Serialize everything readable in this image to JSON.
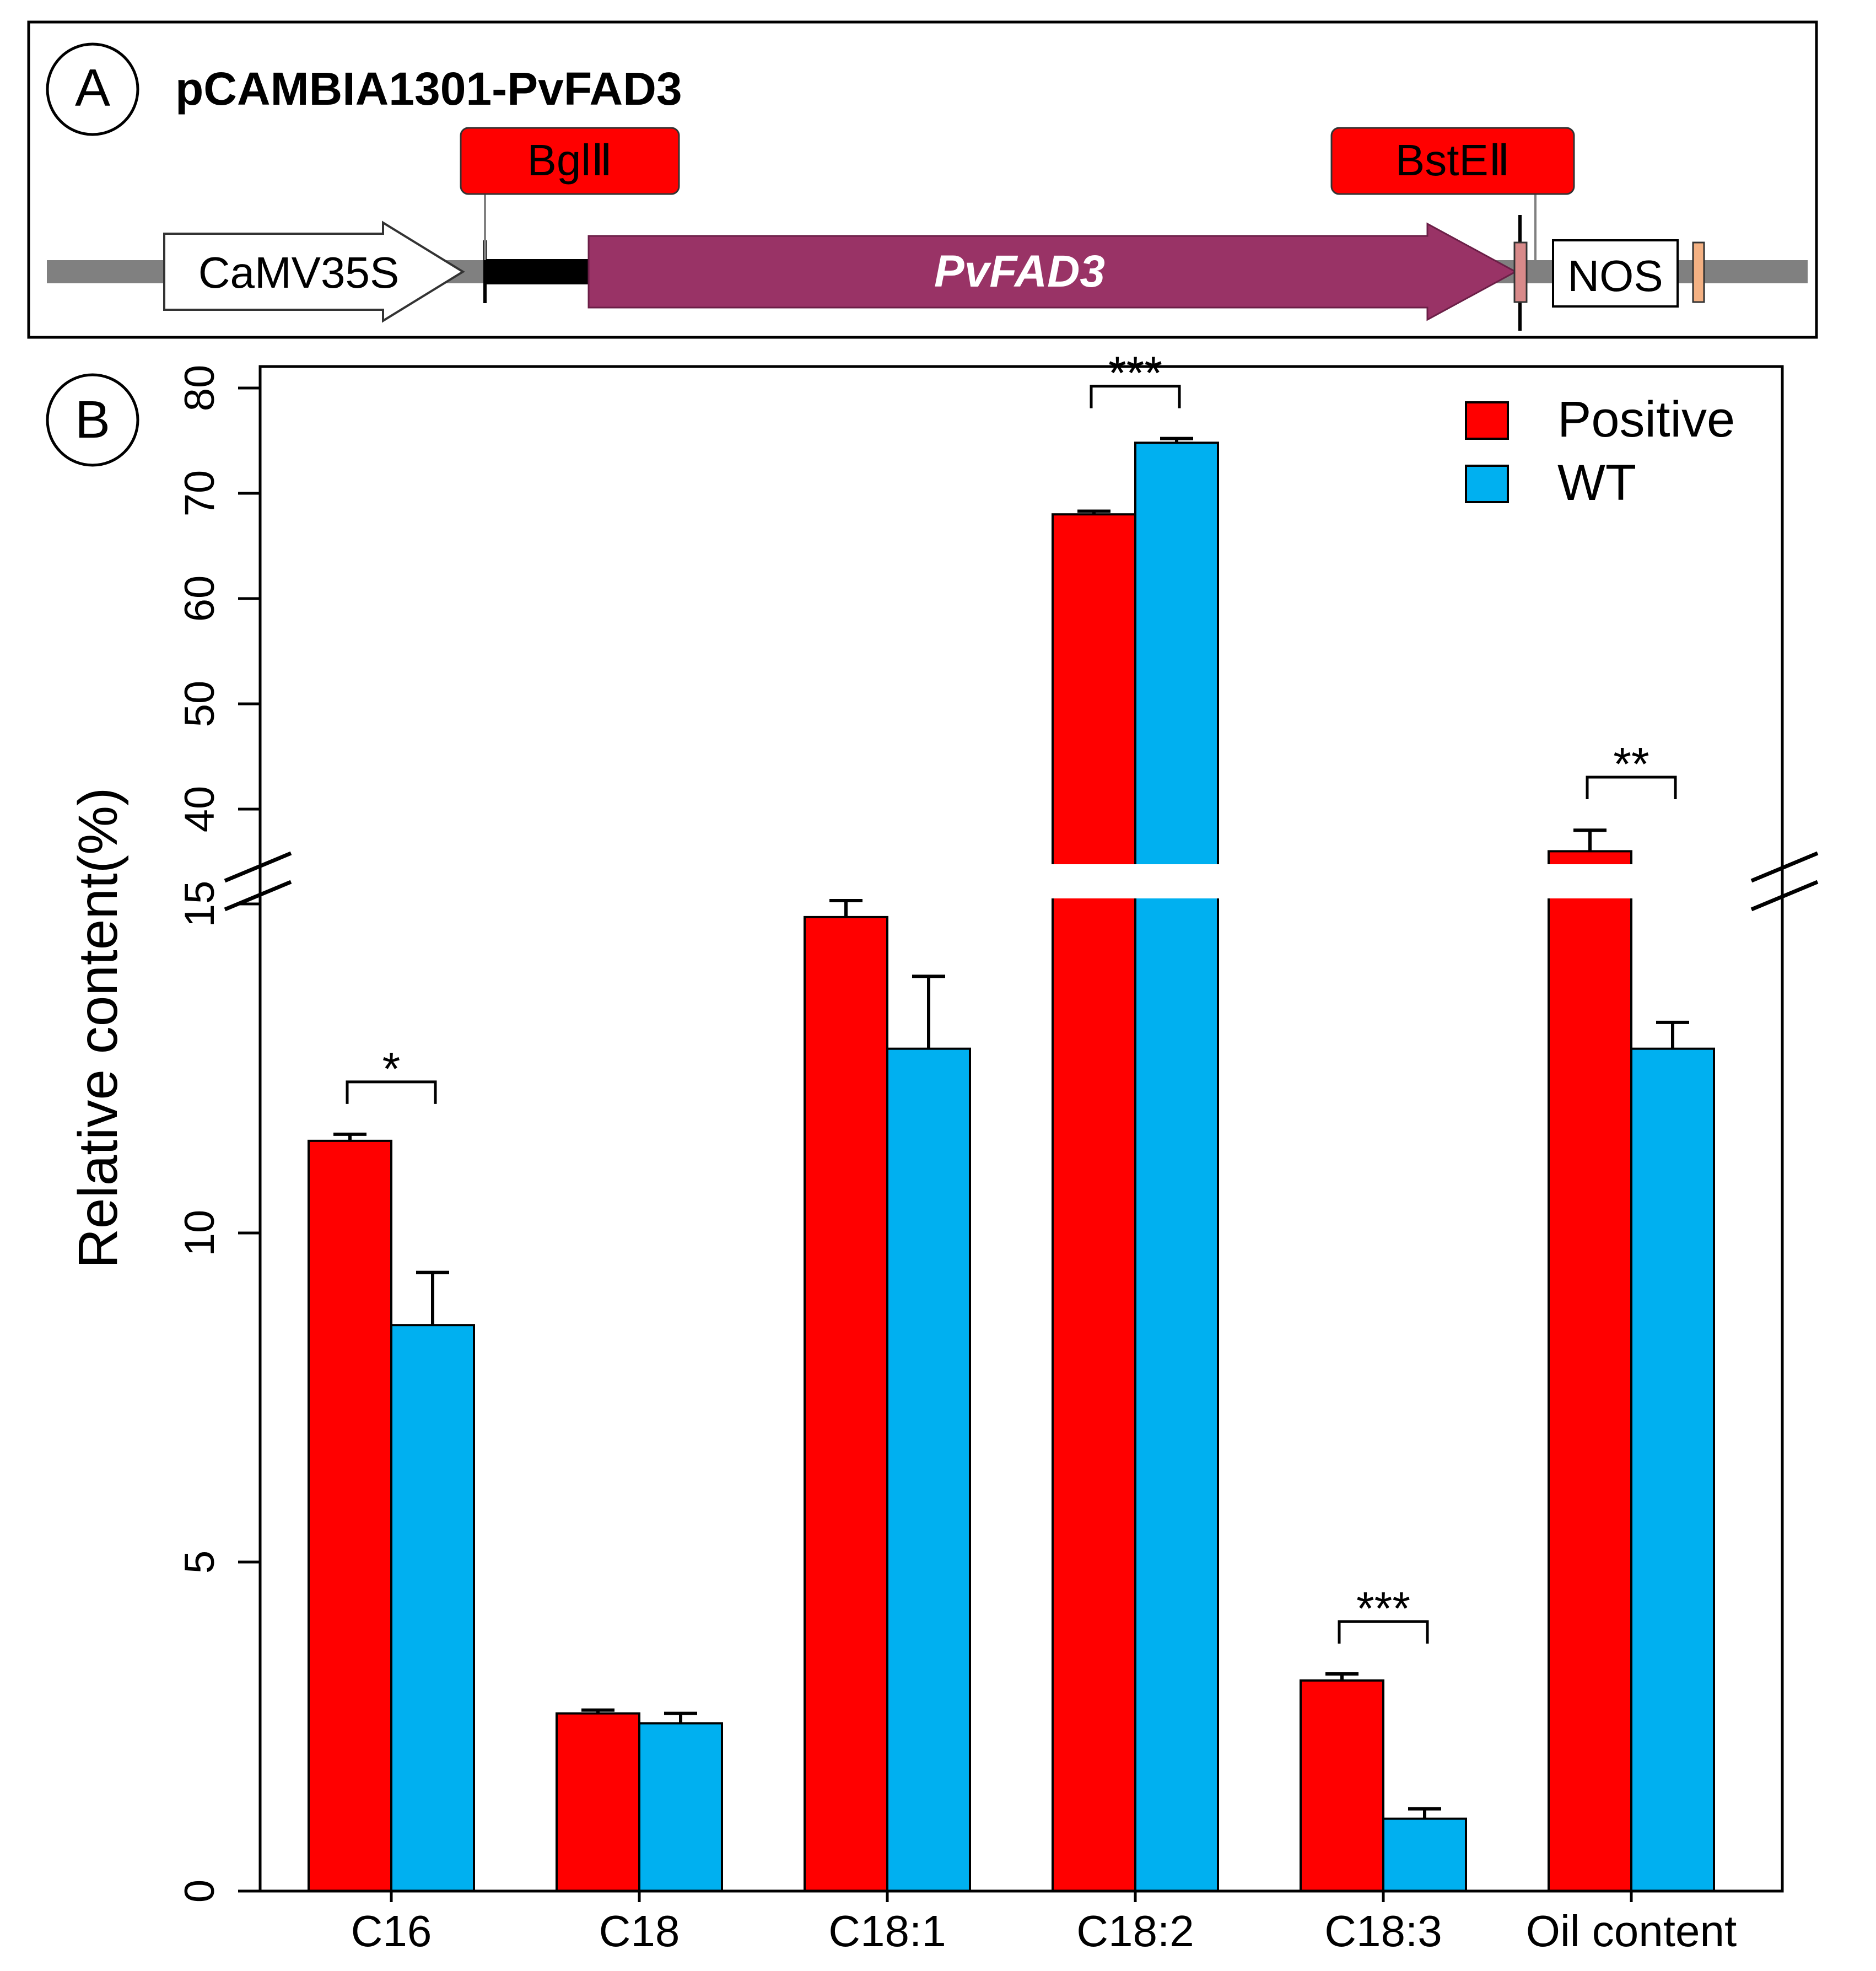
{
  "panel_a": {
    "label": "A",
    "title": "pCAMBIA1301-PvFAD3",
    "site_left": "BglⅡ",
    "site_right": "BstEⅡ",
    "promoter": "CaMV35S",
    "gene": "PvFAD3",
    "terminator": "NOS",
    "colors": {
      "backbone": "#808080",
      "site_box": "#ff0000",
      "gene_arrow": "#993366",
      "box_left": "#d88a8a",
      "box_right": "#f4b183"
    }
  },
  "panel_b": {
    "label": "B"
  },
  "chart_data": {
    "type": "bar",
    "title": "",
    "xlabel": "",
    "ylabel": "Relative content(%)",
    "categories": [
      "C16",
      "C18",
      "C18:1",
      "C18:2",
      "C18:3",
      "Oil content"
    ],
    "series": [
      {
        "name": "Positive",
        "color": "#ff0000",
        "values": [
          11.4,
          2.7,
          14.8,
          68.0,
          3.2,
          36.0
        ],
        "errors": [
          0.1,
          0.05,
          0.25,
          0.3,
          0.1,
          2.0
        ]
      },
      {
        "name": "WT",
        "color": "#00b0f0",
        "values": [
          8.6,
          2.55,
          12.8,
          74.8,
          1.1,
          12.8
        ],
        "errors": [
          0.8,
          0.15,
          1.1,
          0.4,
          0.15,
          0.4
        ]
      }
    ],
    "y_axis_lower": {
      "range": [
        0,
        15
      ],
      "ticks": [
        "0",
        "5",
        "10",
        "15"
      ]
    },
    "y_axis_upper": {
      "range": [
        40,
        80
      ],
      "ticks": [
        "40",
        "50",
        "60",
        "70",
        "80"
      ]
    },
    "axis_break": true,
    "legend": {
      "position": "top-right",
      "entries": [
        "Positive",
        "WT"
      ]
    },
    "significance": [
      {
        "category": "C16",
        "label": "*"
      },
      {
        "category": "C18:2",
        "label": "***"
      },
      {
        "category": "C18:3",
        "label": "***"
      },
      {
        "category": "Oil content",
        "label": "**"
      }
    ]
  }
}
